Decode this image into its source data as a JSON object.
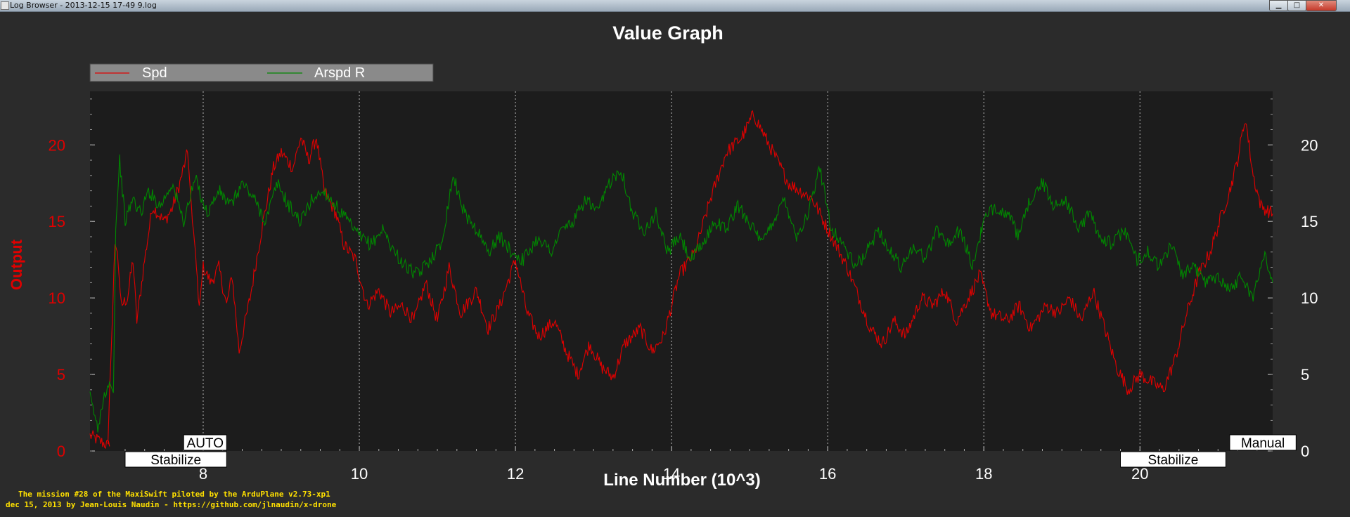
{
  "window": {
    "title": "Log Browser - 2013-12-15 17-49 9.log",
    "buttons": {
      "minimize": "▁",
      "maximize": "□",
      "close": "✕"
    }
  },
  "chart_data": {
    "type": "line",
    "title": "Value Graph",
    "xlabel": "Line Number (10^3)",
    "ylabel": "Output",
    "xlim": [
      6.55,
      21.7
    ],
    "ylim": [
      0,
      23.5
    ],
    "x_ticks": [
      "8",
      "10",
      "12",
      "14",
      "16",
      "18",
      "20"
    ],
    "y_ticks_left": [
      "0",
      "5",
      "10",
      "15",
      "20"
    ],
    "y_ticks_right": [
      "0",
      "5",
      "10",
      "15",
      "20"
    ],
    "grid": "vertical dotted at major x ticks",
    "legend_position": "top-left",
    "colors": {
      "background": "#2b2b2b",
      "plot_area": "#1c1c1c",
      "spd": "#e00000",
      "arspd": "#008800",
      "left_axis_text": "#e00000",
      "text": "#ffffff",
      "legend_bg": "#8a8a8a",
      "credits": "#ffe000"
    },
    "series": [
      {
        "name": "Spd",
        "color": "#e00000",
        "points": [
          [
            6.55,
            1.0
          ],
          [
            6.8,
            0.3
          ],
          [
            6.78,
            0.8
          ],
          [
            6.87,
            13.5
          ],
          [
            6.9,
            13.0
          ],
          [
            6.95,
            9.5
          ],
          [
            7.03,
            10.0
          ],
          [
            7.1,
            12.5
          ],
          [
            7.15,
            8.5
          ],
          [
            7.25,
            12.5
          ],
          [
            7.35,
            16.0
          ],
          [
            7.5,
            15.0
          ],
          [
            7.6,
            15.8
          ],
          [
            7.7,
            17.5
          ],
          [
            7.8,
            19.5
          ],
          [
            7.85,
            16.0
          ],
          [
            7.95,
            9.5
          ],
          [
            8.0,
            12.0
          ],
          [
            8.1,
            11.0
          ],
          [
            8.2,
            12.0
          ],
          [
            8.3,
            9.5
          ],
          [
            8.37,
            11.5
          ],
          [
            8.46,
            6.5
          ],
          [
            8.6,
            10.0
          ],
          [
            8.75,
            14.5
          ],
          [
            8.9,
            18.5
          ],
          [
            9.0,
            19.5
          ],
          [
            9.15,
            18.5
          ],
          [
            9.25,
            20.5
          ],
          [
            9.35,
            19.0
          ],
          [
            9.45,
            20.5
          ],
          [
            9.55,
            17.0
          ],
          [
            9.7,
            15.5
          ],
          [
            9.8,
            13.5
          ],
          [
            9.95,
            12.5
          ],
          [
            10.1,
            9.5
          ],
          [
            10.25,
            10.5
          ],
          [
            10.4,
            9.0
          ],
          [
            10.55,
            9.5
          ],
          [
            10.7,
            8.5
          ],
          [
            10.85,
            11.0
          ],
          [
            11.0,
            8.5
          ],
          [
            11.15,
            12.0
          ],
          [
            11.3,
            9.0
          ],
          [
            11.5,
            10.5
          ],
          [
            11.65,
            8.0
          ],
          [
            11.8,
            9.5
          ],
          [
            12.0,
            12.5
          ],
          [
            12.15,
            9.0
          ],
          [
            12.3,
            7.5
          ],
          [
            12.5,
            8.5
          ],
          [
            12.65,
            6.5
          ],
          [
            12.8,
            5.0
          ],
          [
            12.95,
            7.0
          ],
          [
            13.1,
            5.5
          ],
          [
            13.25,
            4.8
          ],
          [
            13.4,
            7.0
          ],
          [
            13.6,
            8.0
          ],
          [
            13.75,
            6.5
          ],
          [
            13.9,
            7.5
          ],
          [
            14.1,
            11.5
          ],
          [
            14.3,
            13.0
          ],
          [
            14.5,
            16.5
          ],
          [
            14.7,
            19.5
          ],
          [
            14.9,
            20.5
          ],
          [
            15.05,
            22.0
          ],
          [
            15.15,
            21.0
          ],
          [
            15.3,
            19.5
          ],
          [
            15.5,
            17.5
          ],
          [
            15.65,
            17.0
          ],
          [
            15.8,
            16.5
          ],
          [
            15.95,
            15.0
          ],
          [
            16.1,
            13.5
          ],
          [
            16.25,
            12.0
          ],
          [
            16.4,
            10.0
          ],
          [
            16.55,
            8.0
          ],
          [
            16.7,
            7.0
          ],
          [
            16.85,
            8.5
          ],
          [
            17.0,
            7.5
          ],
          [
            17.2,
            10.0
          ],
          [
            17.35,
            9.5
          ],
          [
            17.5,
            10.5
          ],
          [
            17.65,
            8.5
          ],
          [
            17.8,
            10.0
          ],
          [
            17.95,
            11.5
          ],
          [
            18.1,
            9.0
          ],
          [
            18.3,
            8.5
          ],
          [
            18.45,
            9.5
          ],
          [
            18.6,
            8.0
          ],
          [
            18.8,
            9.5
          ],
          [
            18.95,
            9.0
          ],
          [
            19.1,
            10.0
          ],
          [
            19.25,
            8.5
          ],
          [
            19.4,
            10.5
          ],
          [
            19.55,
            8.0
          ],
          [
            19.7,
            5.5
          ],
          [
            19.85,
            4.0
          ],
          [
            20.0,
            5.0
          ],
          [
            20.15,
            4.5
          ],
          [
            20.3,
            4.0
          ],
          [
            20.45,
            6.0
          ],
          [
            20.6,
            9.0
          ],
          [
            20.75,
            11.5
          ],
          [
            20.9,
            13.0
          ],
          [
            21.05,
            15.5
          ],
          [
            21.15,
            17.0
          ],
          [
            21.25,
            19.0
          ],
          [
            21.35,
            21.8
          ],
          [
            21.45,
            18.0
          ],
          [
            21.55,
            16.0
          ],
          [
            21.7,
            15.5
          ]
        ]
      },
      {
        "name": "Arspd R",
        "color": "#008800",
        "points": [
          [
            6.55,
            3.5
          ],
          [
            6.65,
            1.5
          ],
          [
            6.72,
            3.5
          ],
          [
            6.8,
            4.5
          ],
          [
            6.85,
            3.8
          ],
          [
            6.88,
            14.5
          ],
          [
            6.93,
            19.0
          ],
          [
            7.0,
            15.0
          ],
          [
            7.1,
            16.5
          ],
          [
            7.2,
            15.5
          ],
          [
            7.3,
            17.0
          ],
          [
            7.45,
            16.0
          ],
          [
            7.6,
            17.5
          ],
          [
            7.75,
            15.0
          ],
          [
            7.9,
            17.8
          ],
          [
            8.05,
            15.5
          ],
          [
            8.2,
            17.0
          ],
          [
            8.35,
            16.0
          ],
          [
            8.5,
            17.5
          ],
          [
            8.65,
            16.5
          ],
          [
            8.8,
            15.0
          ],
          [
            8.95,
            17.5
          ],
          [
            9.1,
            16.0
          ],
          [
            9.25,
            15.0
          ],
          [
            9.4,
            16.5
          ],
          [
            9.55,
            17.0
          ],
          [
            9.7,
            16.0
          ],
          [
            9.85,
            15.0
          ],
          [
            10.0,
            14.0
          ],
          [
            10.15,
            13.5
          ],
          [
            10.3,
            14.5
          ],
          [
            10.45,
            13.0
          ],
          [
            10.6,
            12.0
          ],
          [
            10.75,
            11.5
          ],
          [
            10.9,
            12.5
          ],
          [
            11.05,
            13.5
          ],
          [
            11.2,
            18.0
          ],
          [
            11.35,
            15.5
          ],
          [
            11.5,
            14.5
          ],
          [
            11.65,
            13.0
          ],
          [
            11.8,
            14.0
          ],
          [
            11.95,
            13.0
          ],
          [
            12.1,
            12.5
          ],
          [
            12.3,
            14.0
          ],
          [
            12.45,
            13.0
          ],
          [
            12.6,
            14.5
          ],
          [
            12.75,
            15.0
          ],
          [
            12.9,
            16.5
          ],
          [
            13.05,
            15.5
          ],
          [
            13.2,
            17.5
          ],
          [
            13.35,
            18.5
          ],
          [
            13.5,
            15.5
          ],
          [
            13.65,
            14.5
          ],
          [
            13.8,
            15.5
          ],
          [
            13.95,
            13.0
          ],
          [
            14.1,
            14.0
          ],
          [
            14.25,
            12.5
          ],
          [
            14.4,
            13.5
          ],
          [
            14.55,
            15.0
          ],
          [
            14.7,
            14.5
          ],
          [
            14.85,
            16.0
          ],
          [
            15.0,
            15.0
          ],
          [
            15.15,
            13.5
          ],
          [
            15.3,
            15.0
          ],
          [
            15.45,
            16.5
          ],
          [
            15.6,
            14.0
          ],
          [
            15.75,
            15.5
          ],
          [
            15.9,
            18.5
          ],
          [
            16.05,
            14.5
          ],
          [
            16.2,
            13.5
          ],
          [
            16.35,
            12.0
          ],
          [
            16.5,
            13.0
          ],
          [
            16.65,
            14.5
          ],
          [
            16.8,
            13.0
          ],
          [
            16.95,
            12.0
          ],
          [
            17.1,
            13.5
          ],
          [
            17.25,
            12.5
          ],
          [
            17.4,
            14.5
          ],
          [
            17.55,
            13.5
          ],
          [
            17.7,
            14.5
          ],
          [
            17.85,
            12.0
          ],
          [
            18.0,
            15.0
          ],
          [
            18.15,
            16.0
          ],
          [
            18.3,
            15.5
          ],
          [
            18.45,
            14.0
          ],
          [
            18.6,
            16.5
          ],
          [
            18.75,
            17.5
          ],
          [
            18.9,
            16.0
          ],
          [
            19.05,
            16.5
          ],
          [
            19.2,
            14.5
          ],
          [
            19.35,
            15.5
          ],
          [
            19.5,
            14.0
          ],
          [
            19.65,
            13.5
          ],
          [
            19.8,
            14.5
          ],
          [
            19.95,
            12.5
          ],
          [
            20.1,
            13.0
          ],
          [
            20.25,
            12.0
          ],
          [
            20.4,
            13.5
          ],
          [
            20.55,
            11.5
          ],
          [
            20.7,
            12.0
          ],
          [
            20.85,
            11.0
          ],
          [
            21.0,
            11.5
          ],
          [
            21.15,
            10.5
          ],
          [
            21.3,
            11.5
          ],
          [
            21.45,
            10.0
          ],
          [
            21.6,
            13.0
          ],
          [
            21.7,
            11.0
          ]
        ]
      }
    ],
    "mode_labels": [
      {
        "text": "AUTO",
        "row": "upper",
        "x_start": 7.75,
        "x_end": 8.3
      },
      {
        "text": "Stabilize",
        "row": "lower",
        "x_start": 7.0,
        "x_end": 8.3
      },
      {
        "text": "Stabilize",
        "row": "lower",
        "x_start": 19.75,
        "x_end": 21.1
      },
      {
        "text": "Manual",
        "row": "upper",
        "x_start": 21.15,
        "x_end": 22.0
      }
    ]
  },
  "credits": {
    "line1": "The mission #28 of the MaxiSwift piloted by the ArduPlane v2.73-xp1",
    "line2": "dec 15, 2013 by Jean-Louis Naudin - https://github.com/jlnaudin/x-drone"
  }
}
